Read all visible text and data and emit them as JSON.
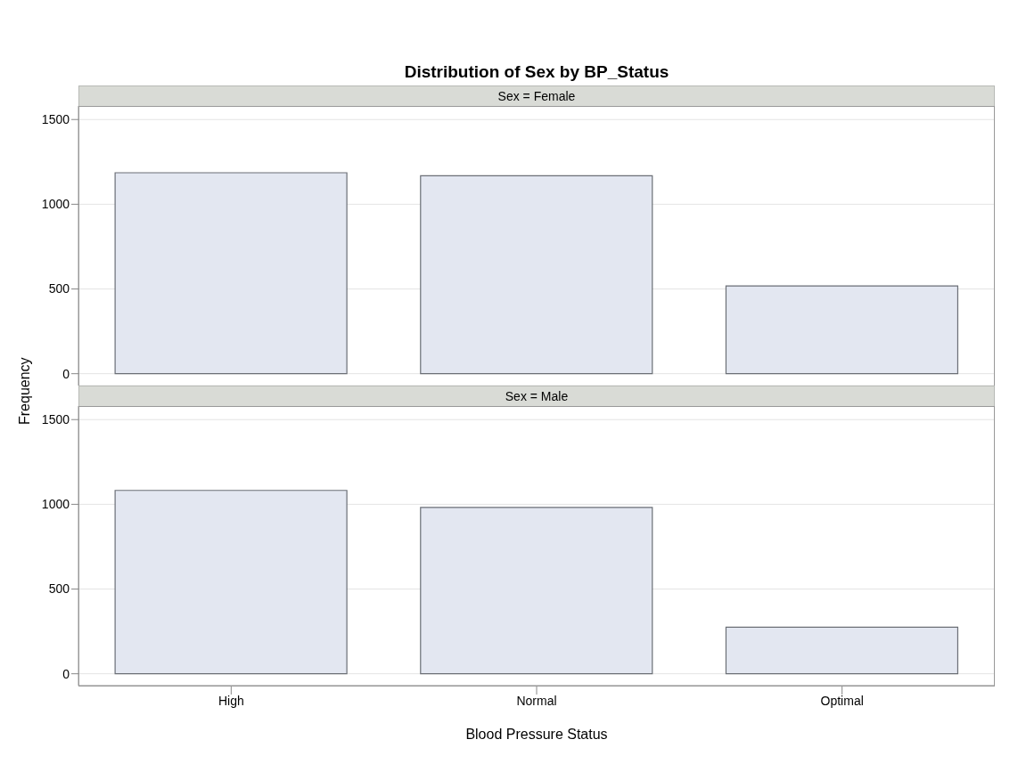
{
  "chart_data": [
    {
      "type": "bar",
      "title": "Distribution of Sex by BP_Status",
      "subtitle": "Sex = Female",
      "ylabel": "Frequency",
      "categories": [
        null,
        null,
        null
      ],
      "values": [
        1186,
        1168,
        518
      ],
      "color": "#e3e7f1",
      "ylim": [
        -70,
        1580
      ],
      "yticks": [
        0,
        500,
        1000,
        1500
      ],
      "grid": "y",
      "tick_labels": "y"
    },
    {
      "type": "bar",
      "subtitle": "Sex = Male",
      "xlabel": "Blood Pressure Status",
      "categories": [
        "High",
        "Normal",
        "Optimal"
      ],
      "values": [
        1082,
        982,
        275
      ],
      "color": "#e3e7f1",
      "ylim": [
        -70,
        1580
      ],
      "yticks": [
        0,
        500,
        1000,
        1500
      ],
      "grid": "y"
    }
  ]
}
